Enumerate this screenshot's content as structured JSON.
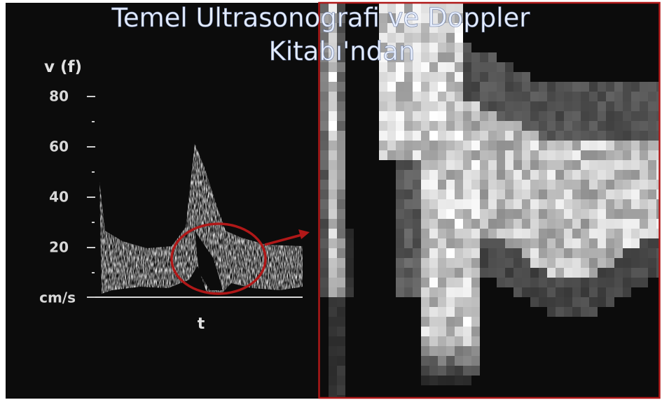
{
  "caption": {
    "line1": "Temel Ultrasonografi ve Doppler",
    "line2": "Kitabı'ndan"
  },
  "spectrum": {
    "y_label": "v (f)",
    "y_ticks": [
      "80",
      "60",
      "40",
      "20"
    ],
    "unit": "cm/s",
    "x_label": "t"
  }
}
